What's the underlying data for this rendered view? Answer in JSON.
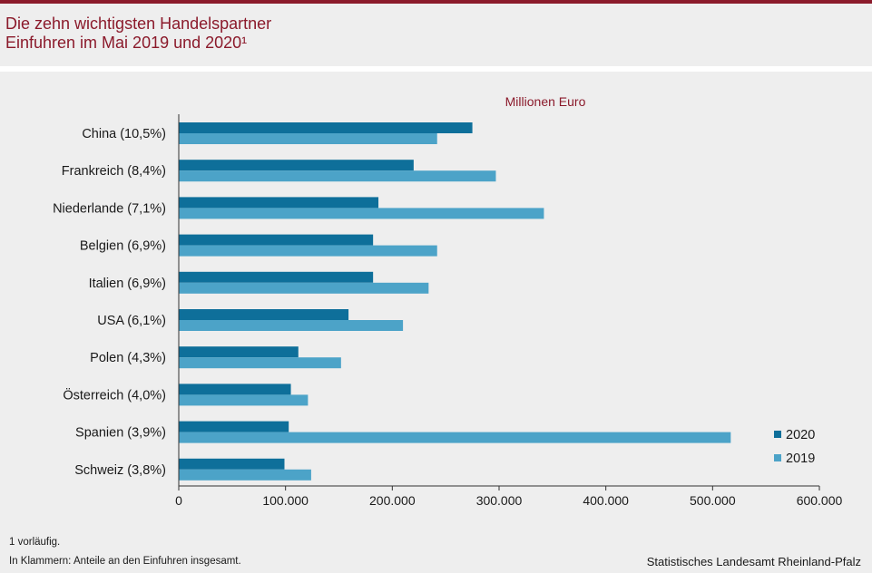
{
  "header": {
    "title": "Die zehn wichtigsten Handelspartner\nEinfuhren im Mai 2019 und 2020¹"
  },
  "footer": {
    "footnote1": "1 vorläufig.",
    "footnote2": "In Klammern: Anteile an den Einfuhren insgesamt.",
    "source": "Statistisches Landesamt Rheinland-Pfalz"
  },
  "colors": {
    "accent": "#8b1a2b",
    "series_2020": "#0e6f9a",
    "series_2019": "#4ca3c8",
    "axis": "#333333"
  },
  "chart_data": {
    "type": "bar",
    "orientation": "horizontal",
    "unit_label": "Millionen Euro",
    "categories": [
      "China (10,5%)",
      "Frankreich (8,4%)",
      "Niederlande (7,1%)",
      "Belgien (6,9%)",
      "Italien (6,9%)",
      "USA (6,1%)",
      "Polen (4,3%)",
      "Österreich (4,0%)",
      "Spanien (3,9%)",
      "Schweiz (3,8%)"
    ],
    "series": [
      {
        "name": "2020",
        "values": [
          275000,
          220000,
          187000,
          182000,
          182000,
          159000,
          112000,
          105000,
          103000,
          99000
        ]
      },
      {
        "name": "2019",
        "values": [
          242000,
          297000,
          342000,
          242000,
          234000,
          210000,
          152000,
          121000,
          517000,
          124000
        ]
      }
    ],
    "xlim": [
      0,
      600000
    ],
    "xticks": [
      0,
      100000,
      200000,
      300000,
      400000,
      500000,
      600000
    ],
    "xtick_labels": [
      "0",
      "100.000",
      "200.000",
      "300.000",
      "400.000",
      "500.000",
      "600.000"
    ],
    "legend_position": "bottom-right",
    "grid": false
  }
}
